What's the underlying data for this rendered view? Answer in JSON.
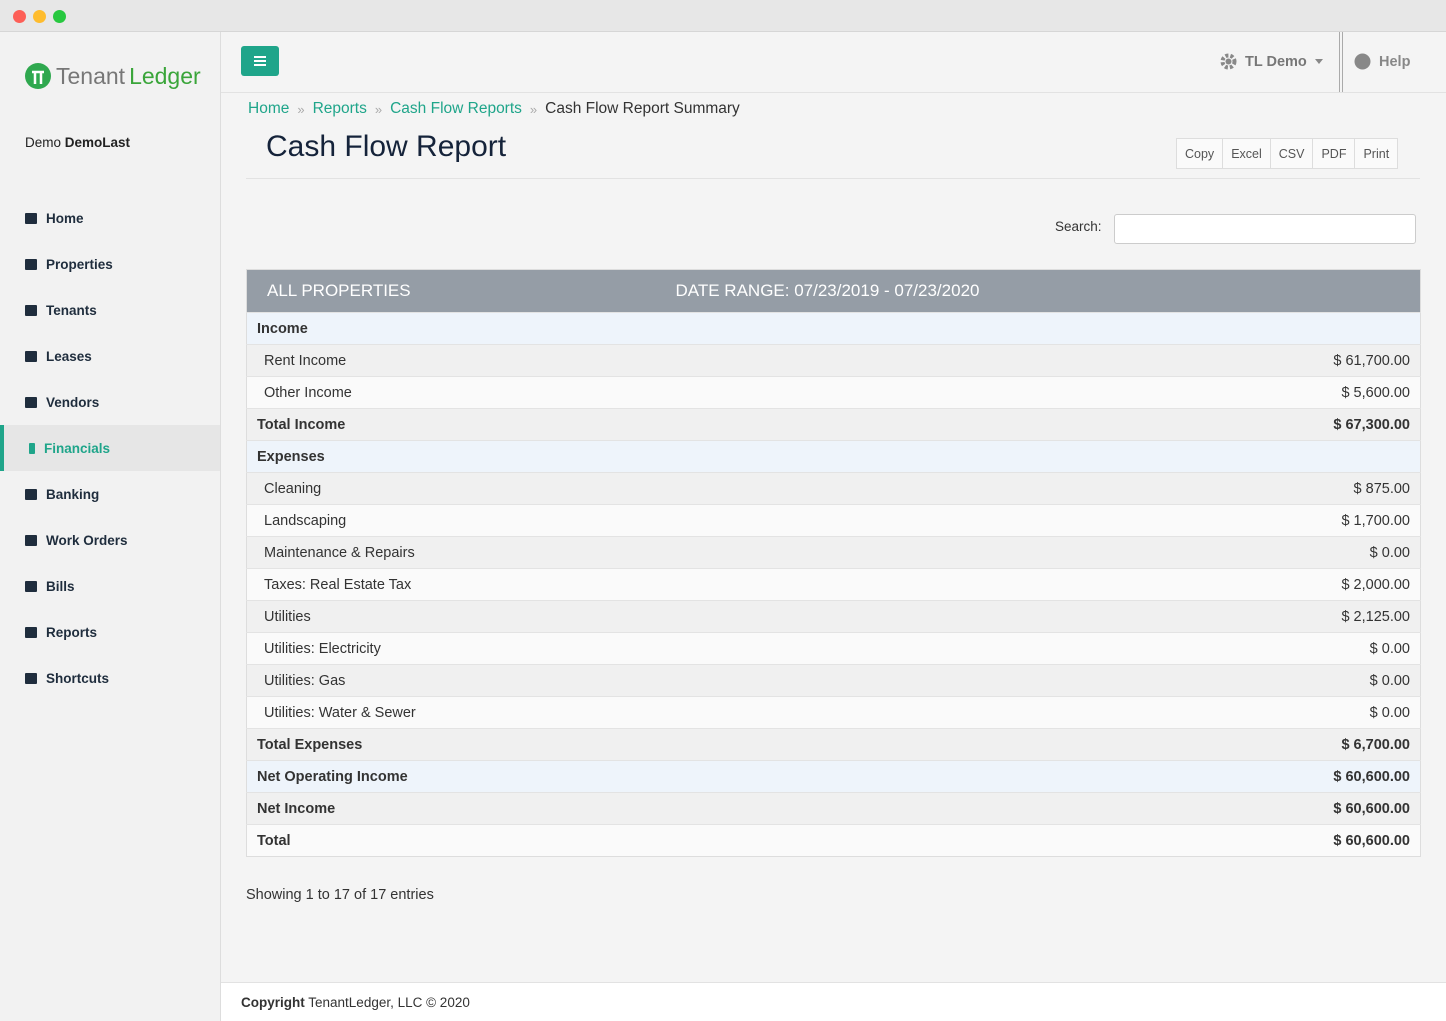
{
  "logo": {
    "first": "Tenant",
    "second": "Ledger"
  },
  "user": {
    "first": "Demo",
    "last": "DemoLast"
  },
  "nav": [
    {
      "label": "Home"
    },
    {
      "label": "Properties"
    },
    {
      "label": "Tenants"
    },
    {
      "label": "Leases"
    },
    {
      "label": "Vendors"
    },
    {
      "label": "Financials",
      "active": true
    },
    {
      "label": "Banking"
    },
    {
      "label": "Work Orders"
    },
    {
      "label": "Bills"
    },
    {
      "label": "Reports"
    },
    {
      "label": "Shortcuts"
    }
  ],
  "topbar": {
    "account": "TL Demo",
    "help": "Help"
  },
  "breadcrumb": [
    "Home",
    "Reports",
    "Cash Flow Reports",
    "Cash Flow Report Summary"
  ],
  "page_title": "Cash Flow Report",
  "export_buttons": [
    "Copy",
    "Excel",
    "CSV",
    "PDF",
    "Print"
  ],
  "search_label": "Search:",
  "table": {
    "header": [
      "ALL PROPERTIES",
      "DATE RANGE: 07/23/2019 - 07/23/2020"
    ],
    "rows": [
      {
        "label": "Income",
        "kind": "section",
        "highlight": true
      },
      {
        "label": "Rent Income",
        "amount": "$ 61,700.00",
        "kind": "item"
      },
      {
        "label": "Other Income",
        "amount": "$ 5,600.00",
        "kind": "item"
      },
      {
        "label": "Total Income",
        "amount": "$ 67,300.00",
        "kind": "total"
      },
      {
        "label": "Expenses",
        "kind": "section",
        "highlight": true
      },
      {
        "label": "Cleaning",
        "amount": "$ 875.00",
        "kind": "item"
      },
      {
        "label": "Landscaping",
        "amount": "$ 1,700.00",
        "kind": "item"
      },
      {
        "label": "Maintenance & Repairs",
        "amount": "$ 0.00",
        "kind": "item"
      },
      {
        "label": "Taxes: Real Estate Tax",
        "amount": "$ 2,000.00",
        "kind": "item"
      },
      {
        "label": "Utilities",
        "amount": "$ 2,125.00",
        "kind": "item"
      },
      {
        "label": "Utilities: Electricity",
        "amount": "$ 0.00",
        "kind": "item"
      },
      {
        "label": "Utilities: Gas",
        "amount": "$ 0.00",
        "kind": "item"
      },
      {
        "label": "Utilities: Water & Sewer",
        "amount": "$ 0.00",
        "kind": "item"
      },
      {
        "label": "Total Expenses",
        "amount": "$ 6,700.00",
        "kind": "total"
      },
      {
        "label": "Net Operating Income",
        "amount": "$ 60,600.00",
        "kind": "total",
        "highlight": true
      },
      {
        "label": "Net Income",
        "amount": "$ 60,600.00",
        "kind": "total"
      },
      {
        "label": "Total",
        "amount": "$ 60,600.00",
        "kind": "total"
      }
    ]
  },
  "info": "Showing 1 to 17 of 17 entries",
  "footer": {
    "strong": "Copyright",
    "text": "TenantLedger, LLC © 2020"
  }
}
